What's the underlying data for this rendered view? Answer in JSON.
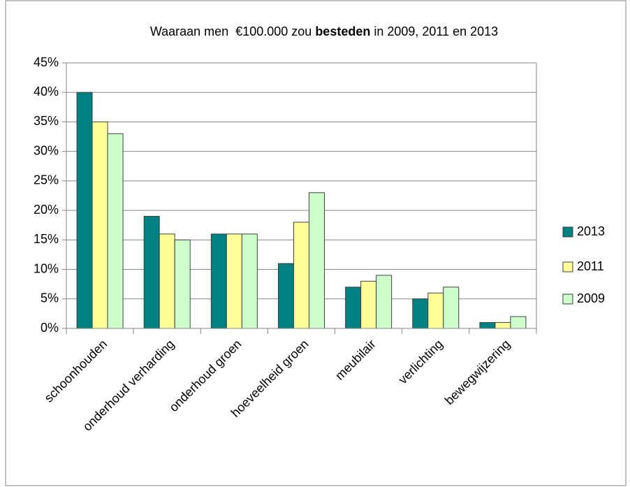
{
  "chart_data": {
    "type": "bar",
    "title": [
      "Waaraan men  €100.000 zou ",
      "besteden",
      " in 2009, 2011 en 2013"
    ],
    "categories": [
      "schoonhouden",
      "onderhoud verharding",
      "onderhoud groen",
      "hoeveelheid groen",
      "meubilair",
      "verlichting",
      "bewegwijzering"
    ],
    "series": [
      {
        "name": "2013",
        "color": "#008080",
        "values": [
          40,
          19,
          16,
          11,
          7,
          5,
          1
        ]
      },
      {
        "name": "2011",
        "color": "#ffff99",
        "values": [
          35,
          16,
          16,
          18,
          8,
          6,
          1
        ]
      },
      {
        "name": "2009",
        "color": "#ccffcc",
        "values": [
          33,
          15,
          16,
          23,
          9,
          7,
          2
        ]
      }
    ],
    "ylim": [
      0,
      45
    ],
    "yticks": [
      {
        "value": 0,
        "label": "0%"
      },
      {
        "value": 5,
        "label": "5%"
      },
      {
        "value": 10,
        "label": "10%"
      },
      {
        "value": 15,
        "label": "15%"
      },
      {
        "value": 20,
        "label": "20%"
      },
      {
        "value": 25,
        "label": "25%"
      },
      {
        "value": 30,
        "label": "30%"
      },
      {
        "value": 35,
        "label": "35%"
      },
      {
        "value": 40,
        "label": "40%"
      },
      {
        "value": 45,
        "label": "45%"
      }
    ],
    "grid": true,
    "legend": "right"
  }
}
